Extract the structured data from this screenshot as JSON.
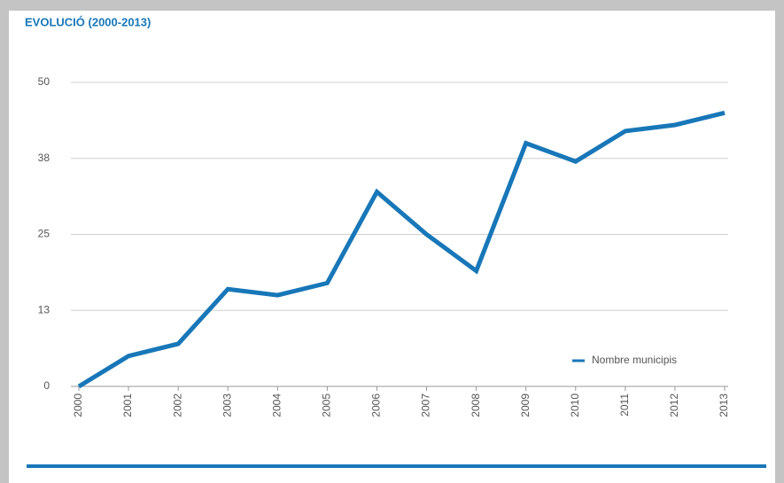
{
  "chart_data": {
    "type": "line",
    "title": "EVOLUCIÓ (2000-2013)",
    "categories": [
      "2000",
      "2001",
      "2002",
      "2003",
      "2004",
      "2005",
      "2006",
      "2007",
      "2008",
      "2009",
      "2010",
      "2011",
      "2012",
      "2013"
    ],
    "series": [
      {
        "name": "Nombre municipis",
        "color": "#1777b8",
        "values": [
          0,
          5,
          7,
          16,
          15,
          17,
          32,
          25,
          19,
          40,
          37,
          42,
          43,
          45
        ]
      }
    ],
    "ylim": [
      0,
      50
    ],
    "yticks": [
      0,
      {
        "value": 12.5,
        "label": "13"
      },
      25,
      {
        "value": 37.5,
        "label": "38"
      },
      50
    ],
    "grid": true,
    "legend": "bottom-right"
  }
}
